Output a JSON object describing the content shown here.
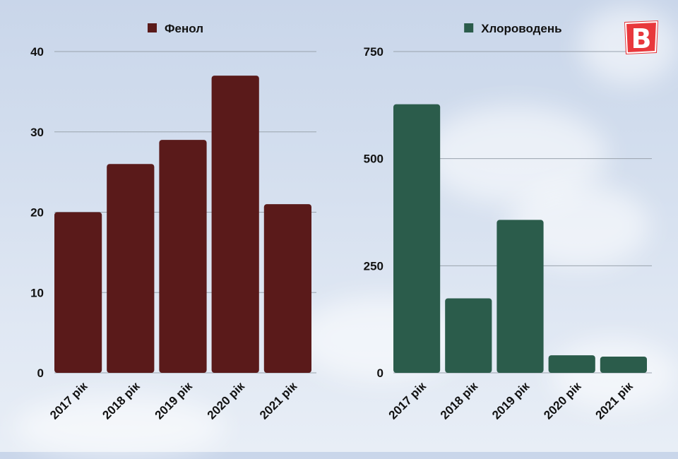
{
  "chart_data": [
    {
      "type": "bar",
      "categories": [
        "2017 рік",
        "2018 рік",
        "2019 рік",
        "2020 рік",
        "2021 рік"
      ],
      "series": [
        {
          "name": "Фенол",
          "values": [
            20,
            26,
            29,
            37,
            21
          ]
        }
      ],
      "ylim": [
        0,
        40
      ],
      "yticks": [
        0,
        10,
        20,
        30,
        40
      ],
      "legend": "top-center",
      "grid": true,
      "color": "#5a1a1a"
    },
    {
      "type": "bar",
      "categories": [
        "2017 рік",
        "2018 рік",
        "2019 рік",
        "2020 рік",
        "2021 рік"
      ],
      "series": [
        {
          "name": "Хлороводень",
          "values": [
            627,
            174,
            357,
            41,
            38
          ]
        }
      ],
      "ylim": [
        0,
        750
      ],
      "yticks": [
        0,
        250,
        500,
        750
      ],
      "legend": "top-center",
      "grid": true,
      "color": "#2b5c4b"
    }
  ],
  "logo": {
    "letter": "B",
    "color": "#e8383c",
    "name": "logo-icon"
  }
}
